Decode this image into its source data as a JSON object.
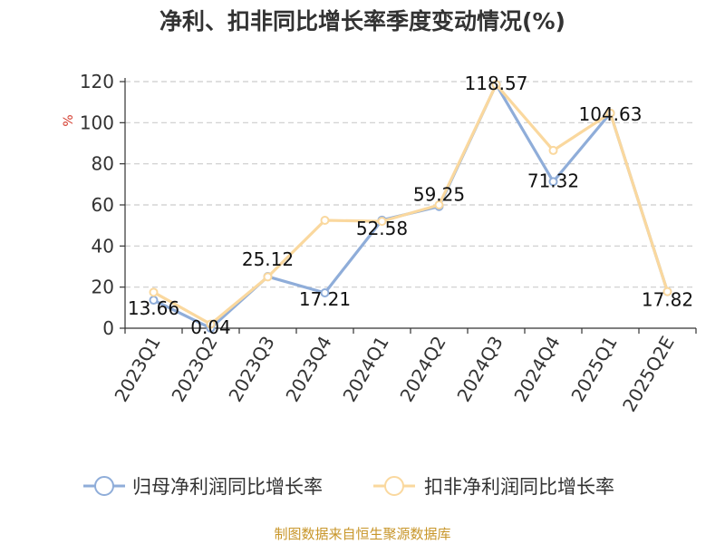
{
  "chart_data": {
    "type": "line",
    "title": "净利、扣非同比增长率季度变动情况(%)",
    "ylabel": "%",
    "xlabel": "",
    "ylim": [
      0,
      120
    ],
    "yticks": [
      0,
      20,
      40,
      60,
      80,
      100,
      120
    ],
    "grid": true,
    "legend_position": "bottom",
    "categories": [
      "2023Q1",
      "2023Q2",
      "2023Q3",
      "2023Q4",
      "2024Q1",
      "2024Q2",
      "2024Q3",
      "2024Q4",
      "2025Q1",
      "2025Q2E"
    ],
    "series": [
      {
        "name": "归母净利润同比增长率",
        "color": "#8fadd9",
        "values": [
          13.66,
          0.04,
          25.12,
          17.21,
          52.58,
          59.25,
          118.57,
          71.32,
          104.63,
          17.82
        ]
      },
      {
        "name": "扣非净利润同比增长率",
        "color": "#fad89e",
        "values": [
          17.5,
          2.0,
          25.0,
          52.5,
          52.0,
          60.0,
          118.57,
          86.5,
          104.63,
          17.82
        ]
      }
    ],
    "data_labels": [
      "13.66",
      "0.04",
      "25.12",
      "17.21",
      "52.58",
      "59.25",
      "118.57",
      "71.32",
      "104.63",
      "17.82"
    ]
  },
  "footer": {
    "source": "制图数据来自恒生聚源数据库"
  }
}
